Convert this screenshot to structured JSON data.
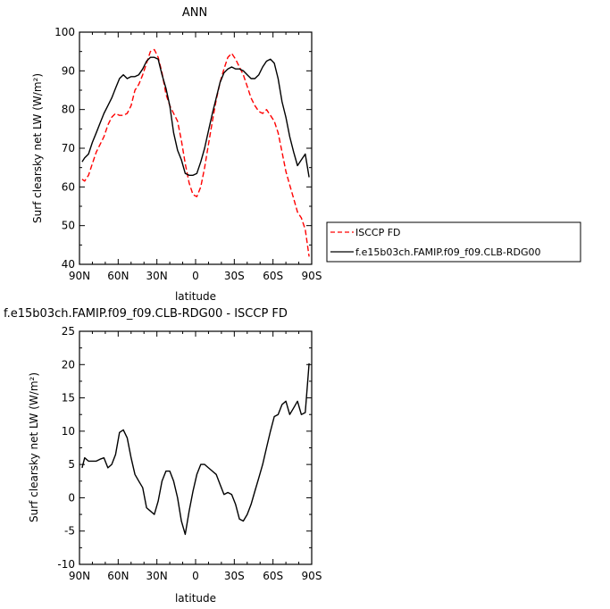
{
  "chart_data": [
    {
      "type": "line",
      "title": "ANN",
      "xlabel": "latitude",
      "ylabel": "Surf clearsky net LW (W/m²)",
      "xlim": [
        90,
        -90
      ],
      "ylim": [
        40,
        100
      ],
      "x_ticks": [
        90,
        60,
        30,
        0,
        -30,
        -60,
        -90
      ],
      "x_tick_labels": [
        "90N",
        "60N",
        "30N",
        "0",
        "30S",
        "60S",
        "90S"
      ],
      "y_ticks": [
        40,
        50,
        60,
        70,
        80,
        90,
        100
      ],
      "legend": "right",
      "series": [
        {
          "name": "ISCCP FD",
          "color": "#ff0000",
          "dash": "dashed",
          "x": [
            88,
            86,
            83,
            80,
            77,
            74,
            71,
            68,
            65,
            62,
            59,
            56,
            53,
            50,
            47,
            44,
            41,
            38,
            35,
            32,
            29,
            26,
            23,
            20,
            17,
            14,
            11,
            8,
            5,
            2,
            -1,
            -4,
            -7,
            -10,
            -13,
            -16,
            -19,
            -22,
            -25,
            -28,
            -31,
            -34,
            -37,
            -40,
            -43,
            -46,
            -49,
            -52,
            -55,
            -58,
            -61,
            -64,
            -67,
            -70,
            -73,
            -76,
            -79,
            -82,
            -85,
            -88
          ],
          "values": [
            62,
            61.5,
            63,
            66,
            69,
            71,
            73,
            76,
            78,
            79,
            78.5,
            78.5,
            79,
            81,
            85,
            86.5,
            89,
            92,
            95,
            95.5,
            93.5,
            89.5,
            84,
            81,
            79,
            77,
            72,
            66,
            61,
            58,
            57.5,
            60,
            65,
            71,
            77,
            82.5,
            87,
            90.5,
            93.5,
            94.5,
            93,
            91,
            89,
            86,
            83,
            81,
            79.5,
            79,
            80,
            78.5,
            77,
            74,
            69,
            64,
            60.5,
            57,
            53.5,
            52,
            49,
            42
          ]
        },
        {
          "name": "f.e15b03ch.FAMIP.f09_f09.CLB-RDG00",
          "color": "#000000",
          "dash": "solid",
          "x": [
            88,
            86,
            83,
            80,
            77,
            74,
            71,
            68,
            65,
            62,
            59,
            56,
            53,
            50,
            47,
            44,
            41,
            38,
            35,
            32,
            29,
            26,
            23,
            20,
            17,
            14,
            11,
            8,
            5,
            2,
            -1,
            -4,
            -7,
            -10,
            -13,
            -16,
            -19,
            -22,
            -25,
            -28,
            -31,
            -34,
            -37,
            -40,
            -43,
            -46,
            -49,
            -52,
            -55,
            -58,
            -61,
            -64,
            -67,
            -70,
            -73,
            -76,
            -79,
            -82,
            -85,
            -88
          ],
          "values": [
            66.5,
            67.5,
            68.5,
            71.5,
            74,
            76.5,
            79,
            81,
            83,
            85.5,
            88,
            89,
            88,
            88.5,
            88.5,
            89,
            90.5,
            92.5,
            93.5,
            93.5,
            93,
            89,
            85.5,
            81,
            74,
            69.5,
            67,
            63.5,
            63,
            63,
            63.5,
            66.5,
            70,
            74.5,
            79,
            83,
            87,
            89.5,
            90.5,
            91,
            90.5,
            90.5,
            90,
            89,
            88,
            88,
            89,
            91,
            92.5,
            93,
            92,
            88,
            82,
            78,
            73,
            69,
            65.5,
            67,
            68.5,
            62.5
          ]
        }
      ]
    },
    {
      "type": "line",
      "title": "f.e15b03ch.FAMIP.f09_f09.CLB-RDG00 - ISCCP FD",
      "xlabel": "latitude",
      "ylabel": "Surf clearsky net LW (W/m²)",
      "xlim": [
        90,
        -90
      ],
      "ylim": [
        -10,
        25
      ],
      "x_ticks": [
        90,
        60,
        30,
        0,
        -30,
        -60,
        -90
      ],
      "x_tick_labels": [
        "90N",
        "60N",
        "30N",
        "0",
        "30S",
        "60S",
        "90S"
      ],
      "y_ticks": [
        -10,
        -5,
        0,
        5,
        10,
        15,
        20,
        25
      ],
      "series": [
        {
          "color": "#000000",
          "dash": "solid",
          "x": [
            88,
            86,
            83,
            80,
            77,
            74,
            71,
            68,
            65,
            62,
            59,
            56,
            53,
            50,
            47,
            44,
            41,
            38,
            35,
            32,
            29,
            26,
            23,
            20,
            17,
            14,
            11,
            8,
            5,
            2,
            -1,
            -4,
            -7,
            -10,
            -13,
            -16,
            -19,
            -22,
            -25,
            -28,
            -31,
            -34,
            -37,
            -40,
            -43,
            -46,
            -49,
            -52,
            -55,
            -58,
            -61,
            -64,
            -67,
            -70,
            -73,
            -76,
            -79,
            -82,
            -85,
            -88
          ],
          "values": [
            4.5,
            6,
            5.5,
            5.5,
            5.5,
            5.8,
            6,
            4.5,
            5,
            6.5,
            9.8,
            10.2,
            9,
            6,
            3.5,
            2.5,
            1.5,
            -1.5,
            -2,
            -2.5,
            -0.5,
            2.5,
            4,
            4,
            2.5,
            0,
            -3.5,
            -5.5,
            -2,
            1,
            3.5,
            5,
            5,
            4.5,
            4,
            3.5,
            2,
            0.5,
            0.8,
            0.5,
            -1,
            -3.2,
            -3.5,
            -2.5,
            -1,
            1,
            3,
            5,
            7.5,
            10,
            12.2,
            12.5,
            14,
            14.5,
            12.5,
            13.5,
            14.5,
            12.5,
            12.8,
            20.2
          ]
        }
      ]
    }
  ],
  "legend": {
    "items": [
      {
        "label": "ISCCP FD",
        "color": "#ff0000",
        "dash": "dashed"
      },
      {
        "label": "f.e15b03ch.FAMIP.f09_f09.CLB-RDG00",
        "color": "#000000",
        "dash": "solid"
      }
    ]
  }
}
